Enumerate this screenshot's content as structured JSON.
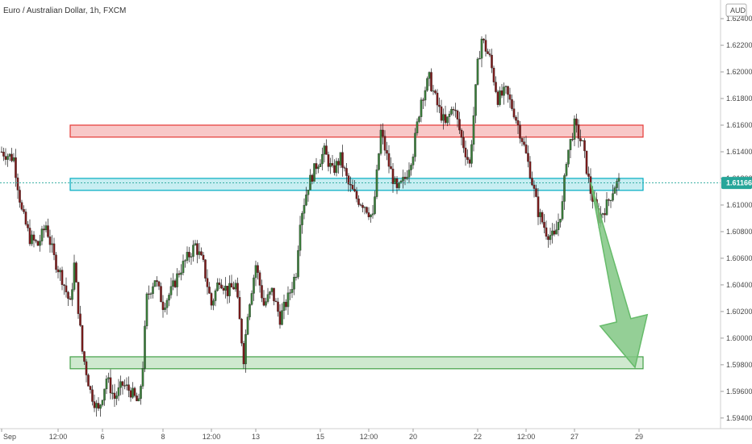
{
  "chart_data": {
    "type": "candlestick",
    "title": "Euro / Australian Dollar, 1h, FXCM",
    "currency": "AUD",
    "current_price": "1.61166",
    "y_ticks": [
      "1.62400",
      "1.62200",
      "1.62000",
      "1.61800",
      "1.61600",
      "1.61400",
      "1.61200",
      "1.61000",
      "1.60800",
      "1.60600",
      "1.60400",
      "1.60200",
      "1.60000",
      "1.59800",
      "1.59600",
      "1.59400"
    ],
    "y_tick_values": [
      1.624,
      1.622,
      1.62,
      1.618,
      1.616,
      1.614,
      1.612,
      1.61,
      1.608,
      1.606,
      1.604,
      1.602,
      1.6,
      1.598,
      1.596,
      1.594
    ],
    "ylim": [
      1.5932,
      1.6254
    ],
    "x_ticks": [
      "Sep",
      "12:00",
      "6",
      "8",
      "12:00",
      "13",
      "15",
      "12:00",
      "20",
      "22",
      "12:00",
      "27",
      "29"
    ],
    "x_tick_index": [
      0,
      14,
      25,
      40,
      52,
      63,
      79,
      91,
      102,
      118,
      130,
      142,
      158
    ],
    "x_range": [
      0,
      178
    ],
    "zones": [
      {
        "name": "resistance-zone",
        "color": "#e53935",
        "fill": "#f8c8c8",
        "y_low": 1.6151,
        "y_high": 1.616,
        "x_start": 17,
        "x_end": 159
      },
      {
        "name": "support-zone",
        "color": "#00acc1",
        "fill": "#c7eef2",
        "y_low": 1.6111,
        "y_high": 1.612,
        "x_start": 17,
        "x_end": 159
      },
      {
        "name": "target-zone",
        "color": "#43a047",
        "fill": "#cfe9cf",
        "y_low": 1.5977,
        "y_high": 1.5986,
        "x_start": 17,
        "x_end": 159
      }
    ],
    "arrow": {
      "from_x": 146,
      "from_y": 1.6117,
      "to_x": 157,
      "to_y": 1.5978,
      "color": "#66bb6a"
    },
    "price_path": [
      [
        0,
        1.614
      ],
      [
        3,
        1.6135
      ],
      [
        5,
        1.6095
      ],
      [
        7,
        1.6075
      ],
      [
        9,
        1.607
      ],
      [
        11,
        1.6085
      ],
      [
        13,
        1.606
      ],
      [
        15,
        1.6045
      ],
      [
        17,
        1.6025
      ],
      [
        18,
        1.6055
      ],
      [
        20,
        1.599
      ],
      [
        22,
        1.596
      ],
      [
        24,
        1.5945
      ],
      [
        26,
        1.597
      ],
      [
        28,
        1.5955
      ],
      [
        30,
        1.5965
      ],
      [
        32,
        1.596
      ],
      [
        34,
        1.595
      ],
      [
        35,
        1.598
      ],
      [
        36,
        1.603
      ],
      [
        38,
        1.6045
      ],
      [
        40,
        1.6025
      ],
      [
        42,
        1.6035
      ],
      [
        44,
        1.605
      ],
      [
        46,
        1.606
      ],
      [
        48,
        1.607
      ],
      [
        50,
        1.6055
      ],
      [
        52,
        1.6025
      ],
      [
        54,
        1.6045
      ],
      [
        56,
        1.6035
      ],
      [
        58,
        1.604
      ],
      [
        60,
        1.5985
      ],
      [
        61,
        1.602
      ],
      [
        63,
        1.6055
      ],
      [
        65,
        1.6025
      ],
      [
        67,
        1.6035
      ],
      [
        69,
        1.6015
      ],
      [
        71,
        1.603
      ],
      [
        73,
        1.605
      ],
      [
        74,
        1.609
      ],
      [
        76,
        1.6115
      ],
      [
        78,
        1.613
      ],
      [
        80,
        1.614
      ],
      [
        82,
        1.6125
      ],
      [
        84,
        1.6135
      ],
      [
        86,
        1.6115
      ],
      [
        88,
        1.6105
      ],
      [
        90,
        1.61
      ],
      [
        92,
        1.609
      ],
      [
        94,
        1.6155
      ],
      [
        96,
        1.613
      ],
      [
        98,
        1.611
      ],
      [
        100,
        1.612
      ],
      [
        102,
        1.614
      ],
      [
        104,
        1.618
      ],
      [
        106,
        1.6195
      ],
      [
        108,
        1.6175
      ],
      [
        110,
        1.616
      ],
      [
        112,
        1.6175
      ],
      [
        114,
        1.615
      ],
      [
        116,
        1.613
      ],
      [
        118,
        1.6205
      ],
      [
        119,
        1.6225
      ],
      [
        121,
        1.621
      ],
      [
        123,
        1.618
      ],
      [
        125,
        1.6185
      ],
      [
        127,
        1.617
      ],
      [
        129,
        1.615
      ],
      [
        131,
        1.6125
      ],
      [
        133,
        1.6095
      ],
      [
        135,
        1.608
      ],
      [
        137,
        1.6075
      ],
      [
        139,
        1.61
      ],
      [
        140,
        1.6135
      ],
      [
        142,
        1.616
      ],
      [
        144,
        1.6145
      ],
      [
        146,
        1.611
      ],
      [
        148,
        1.609
      ],
      [
        150,
        1.61
      ],
      [
        152,
        1.6115
      ],
      [
        153,
        1.6117
      ]
    ]
  }
}
